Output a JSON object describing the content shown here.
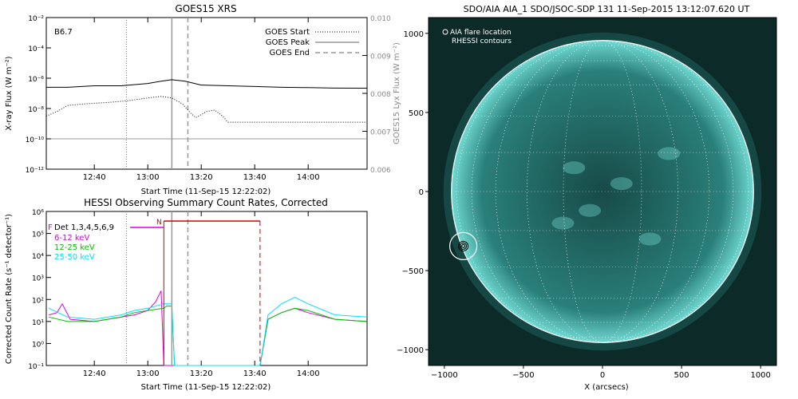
{
  "chart_data": [
    {
      "type": "line",
      "title": "GOES15 XRS",
      "xlabel": "Start Time (11-Sep-15 12:22:02)",
      "ylabel": "X-ray Flux (W m⁻²)",
      "ylabel_right": "GOES15 Lyx Flux (W m⁻²)",
      "class_label": "B6.7",
      "x_ticks": [
        "12:40",
        "13:00",
        "13:20",
        "13:40",
        "14:00"
      ],
      "y_ticks": [
        "10⁻²",
        "10⁻⁴",
        "10⁻⁶",
        "10⁻⁸",
        "10⁻¹⁰",
        "10⁻¹²"
      ],
      "y_ticks_right": [
        "0.010",
        "0.009",
        "0.008",
        "0.007",
        "0.006"
      ],
      "xlim": [
        "12:22:02",
        "14:22:02"
      ],
      "ylim_log10": [
        -12,
        -2
      ],
      "ylim_right": [
        0.006,
        0.01
      ],
      "legend": [
        "GOES Start",
        "GOES Peak",
        "GOES End"
      ],
      "legend_position": "top-right",
      "events": {
        "start": "12:52",
        "peak": "13:09",
        "end": "13:15"
      },
      "series": [
        {
          "name": "",
          "color": "#000000",
          "style": "solid",
          "x": [
            "12:22",
            "12:30",
            "12:40",
            "12:50",
            "13:00",
            "13:05",
            "13:09",
            "13:14",
            "13:20",
            "13:30",
            "13:40",
            "13:50",
            "14:00",
            "14:10",
            "14:22"
          ],
          "log10_y": [
            -6.6,
            -6.6,
            -6.5,
            -6.5,
            -6.35,
            -6.2,
            -6.1,
            -6.2,
            -6.45,
            -6.5,
            -6.55,
            -6.6,
            -6.62,
            -6.65,
            -6.66
          ]
        },
        {
          "name": "",
          "color": "#000000",
          "style": "dotted",
          "x": [
            "12:22",
            "12:26",
            "12:30",
            "12:36",
            "12:45",
            "12:52",
            "13:00",
            "13:05",
            "13:09",
            "13:13",
            "13:16",
            "13:18",
            "13:22",
            "13:25",
            "13:28",
            "13:30",
            "14:22"
          ],
          "log10_y": [
            -8.5,
            -8.2,
            -7.8,
            -7.7,
            -7.6,
            -7.5,
            -7.3,
            -7.2,
            -7.3,
            -7.7,
            -8.3,
            -8.6,
            -8.2,
            -8.1,
            -8.5,
            -8.9,
            -8.9
          ]
        },
        {
          "name": "",
          "color": "#999999",
          "style": "solid",
          "x": [
            "12:22",
            "14:22"
          ],
          "log10_y": [
            -10.0,
            -10.0
          ]
        }
      ]
    },
    {
      "type": "line",
      "title": "HESSI Observing Summary Count Rates, Corrected",
      "xlabel": "Start Time (11-Sep-15 12:22:02)",
      "ylabel": "Corrected Count Rate (s⁻¹ detector⁻¹)",
      "x_ticks": [
        "12:40",
        "13:00",
        "13:20",
        "13:40",
        "14:00"
      ],
      "y_ticks": [
        "10⁶",
        "10⁵",
        "10⁴",
        "10³",
        "10²",
        "10¹",
        "10⁰",
        "10⁻¹"
      ],
      "xlim": [
        "12:22:02",
        "14:22:02"
      ],
      "ylim_log10": [
        -1,
        6
      ],
      "legend": [
        "Det 1,3,4,5,6,9",
        "6-12 keV",
        "12-25 keV",
        "25-50 keV"
      ],
      "legend_position": "top-left",
      "flags": {
        "F": "F",
        "N": "N"
      },
      "events": {
        "goes_start": "12:52",
        "goes_peak": "13:09",
        "goes_end": "13:15",
        "night_start": "13:06",
        "night_end": "13:42"
      },
      "series": [
        {
          "name": "6-12 keV",
          "color": "#e000e0",
          "x": [
            "12:23",
            "12:26",
            "12:28",
            "12:31",
            "12:40",
            "12:55",
            "13:00",
            "13:03",
            "13:05",
            "13:06",
            "13:42",
            "13:45",
            "13:50",
            "13:55",
            "14:00",
            "14:10",
            "14:22"
          ],
          "log10_y": [
            1.3,
            1.4,
            1.8,
            1.1,
            1.0,
            1.3,
            1.5,
            1.9,
            2.4,
            -1,
            -1,
            1.1,
            1.4,
            1.6,
            1.4,
            1.1,
            1.0
          ]
        },
        {
          "name": "12-25 keV",
          "color": "#00c000",
          "x": [
            "12:23",
            "12:30",
            "12:40",
            "12:50",
            "12:55",
            "13:00",
            "13:06",
            "13:07",
            "13:09",
            "13:10",
            "13:11",
            "13:42",
            "13:45",
            "13:50",
            "13:55",
            "14:00",
            "14:10",
            "14:22"
          ],
          "log10_y": [
            1.2,
            1.0,
            1.0,
            1.2,
            1.4,
            1.5,
            1.6,
            1.7,
            1.7,
            -1,
            -1,
            -1,
            1.1,
            1.4,
            1.6,
            1.5,
            1.1,
            1.0
          ]
        },
        {
          "name": "25-50 keV",
          "color": "#00e0ff",
          "x": [
            "12:23",
            "12:30",
            "12:40",
            "12:50",
            "12:55",
            "13:00",
            "13:06",
            "13:07",
            "13:09",
            "13:10",
            "13:11",
            "13:42",
            "13:45",
            "13:50",
            "13:55",
            "14:00",
            "14:10",
            "14:22"
          ],
          "log10_y": [
            1.6,
            1.2,
            1.1,
            1.3,
            1.5,
            1.6,
            1.8,
            1.8,
            1.8,
            -1,
            -1,
            -1,
            1.3,
            1.8,
            2.1,
            1.8,
            1.3,
            1.2
          ]
        }
      ]
    },
    {
      "type": "heatmap",
      "title": "SDO/AIA AIA_1 SDO/JSOC-SDP 131 11-Sep-2015 13:12:07.620 UT",
      "xlabel": "X (arcsecs)",
      "ylabel": "",
      "x_ticks": [
        "−1000",
        "−500",
        "0",
        "500",
        "1000"
      ],
      "y_ticks": [
        "1000",
        "500",
        "0",
        "−500",
        "−1000"
      ],
      "xlim": [
        -1100,
        1100
      ],
      "ylim": [
        -1100,
        1100
      ],
      "legend": [
        "AIA flare location",
        "RHESSI contours"
      ],
      "legend_position": "top-left",
      "solar_radius": 955,
      "flare_location": [
        -880,
        -345
      ],
      "colors": {
        "background": "#0c2a28",
        "disk": "#2a7f7a",
        "limb": "#ffffff"
      }
    }
  ]
}
